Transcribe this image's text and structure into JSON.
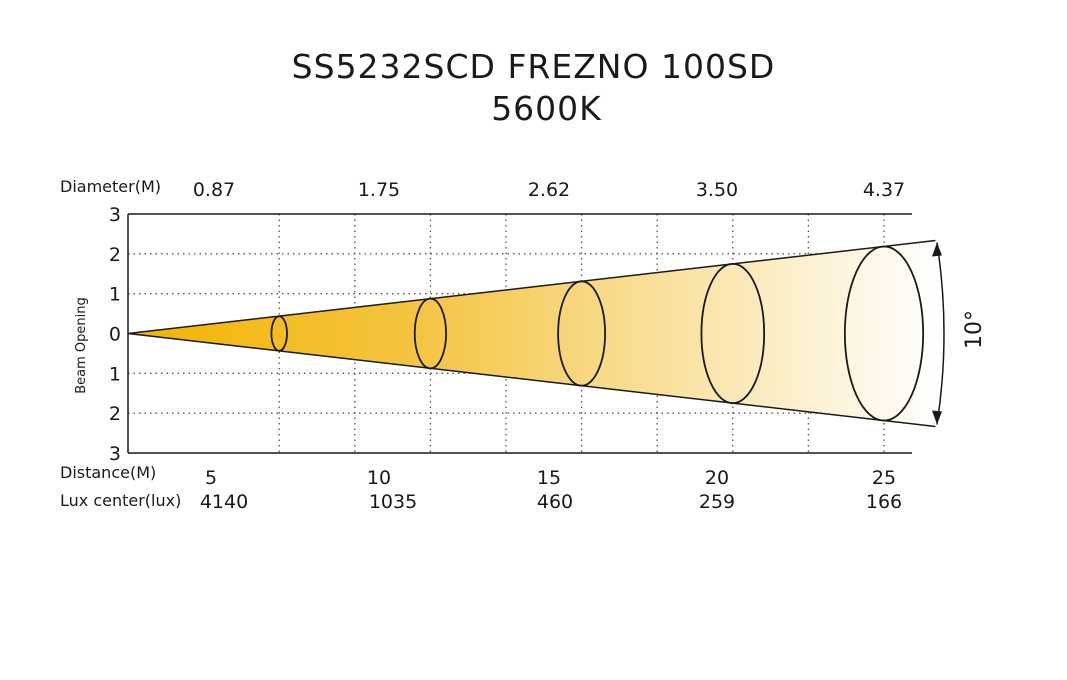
{
  "chart_data": {
    "type": "beam-diagram",
    "title": "SS5232SCD FREZNO 100SD",
    "subtitle": "5600K",
    "beam_angle_label": "10°",
    "y_axis": {
      "label": "Beam Opening",
      "ticks": [
        "3",
        "2",
        "1",
        "0",
        "1",
        "2",
        "3"
      ],
      "ylim": [
        -3,
        3
      ]
    },
    "rows": {
      "diameter_label": "Diameter(M)",
      "distance_label": "Distance(M)",
      "lux_label": "Lux center(lux)"
    },
    "distance": [
      "5",
      "10",
      "15",
      "20",
      "25"
    ],
    "diameter": [
      "0.87",
      "1.75",
      "2.62",
      "3.50",
      "4.37"
    ],
    "lux_center": [
      "4140",
      "1035",
      "460",
      "259",
      "166"
    ],
    "distance_values": [
      5,
      10,
      15,
      20,
      25
    ],
    "diameter_values": [
      0.87,
      1.75,
      2.62,
      3.5,
      4.37
    ],
    "lux_values": [
      4140,
      1035,
      460,
      259,
      166
    ],
    "colors": {
      "beam_start": "#f2b400",
      "beam_end": "#ffffff",
      "line": "#1a1a1a",
      "grid": "#555555"
    }
  }
}
